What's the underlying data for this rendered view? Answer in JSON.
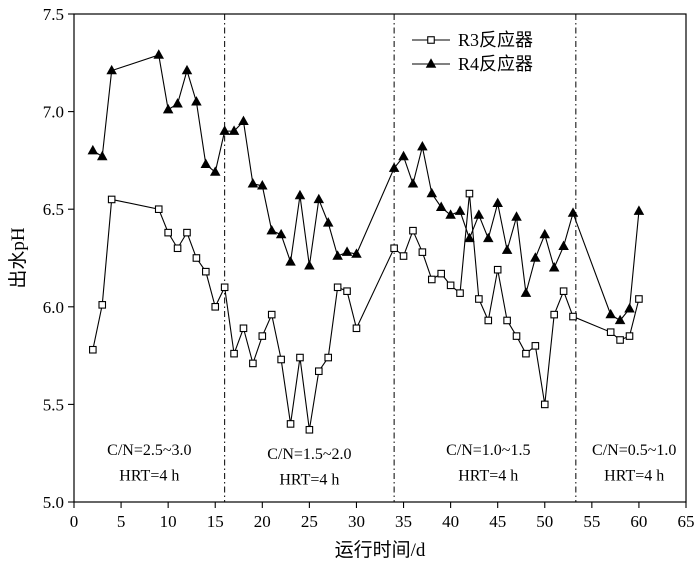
{
  "chart_data": {
    "type": "line",
    "title": "",
    "xlabel": "运行时间/d",
    "ylabel": "出水pH",
    "xlim": [
      0,
      65
    ],
    "ylim": [
      5.0,
      7.5
    ],
    "xticks": [
      0,
      5,
      10,
      15,
      20,
      25,
      30,
      35,
      40,
      45,
      50,
      55,
      60,
      65
    ],
    "yticks": [
      "5.0",
      "5.5",
      "6.0",
      "6.5",
      "7.0",
      "7.5"
    ],
    "grid": false,
    "legend_position": "top-right",
    "series": [
      {
        "name": "R3反应器",
        "marker": "open-square",
        "color": "#000000",
        "points": [
          [
            2,
            5.78
          ],
          [
            3,
            6.01
          ],
          [
            4,
            6.55
          ],
          [
            9,
            6.5
          ],
          [
            10,
            6.38
          ],
          [
            11,
            6.3
          ],
          [
            12,
            6.38
          ],
          [
            13,
            6.25
          ],
          [
            14,
            6.18
          ],
          [
            15,
            6.0
          ],
          [
            16,
            6.1
          ],
          [
            17,
            5.76
          ],
          [
            18,
            5.89
          ],
          [
            19,
            5.71
          ],
          [
            20,
            5.85
          ],
          [
            21,
            5.96
          ],
          [
            22,
            5.73
          ],
          [
            23,
            5.4
          ],
          [
            24,
            5.74
          ],
          [
            25,
            5.37
          ],
          [
            26,
            5.67
          ],
          [
            27,
            5.74
          ],
          [
            28,
            6.1
          ],
          [
            29,
            6.08
          ],
          [
            30,
            5.89
          ],
          [
            34,
            6.3
          ],
          [
            35,
            6.26
          ],
          [
            36,
            6.39
          ],
          [
            37,
            6.28
          ],
          [
            38,
            6.14
          ],
          [
            39,
            6.17
          ],
          [
            40,
            6.11
          ],
          [
            41,
            6.07
          ],
          [
            42,
            6.58
          ],
          [
            43,
            6.04
          ],
          [
            44,
            5.93
          ],
          [
            45,
            6.19
          ],
          [
            46,
            5.93
          ],
          [
            47,
            5.85
          ],
          [
            48,
            5.76
          ],
          [
            49,
            5.8
          ],
          [
            50,
            5.5
          ],
          [
            51,
            5.96
          ],
          [
            52,
            6.08
          ],
          [
            53,
            5.95
          ],
          [
            57,
            5.87
          ],
          [
            58,
            5.83
          ],
          [
            59,
            5.85
          ],
          [
            60,
            6.04
          ]
        ]
      },
      {
        "name": "R4反应器",
        "marker": "filled-triangle",
        "color": "#000000",
        "points": [
          [
            2,
            6.8
          ],
          [
            3,
            6.77
          ],
          [
            4,
            7.21
          ],
          [
            9,
            7.29
          ],
          [
            10,
            7.01
          ],
          [
            11,
            7.04
          ],
          [
            12,
            7.21
          ],
          [
            13,
            7.05
          ],
          [
            14,
            6.73
          ],
          [
            15,
            6.69
          ],
          [
            16,
            6.9
          ],
          [
            17,
            6.9
          ],
          [
            18,
            6.95
          ],
          [
            19,
            6.63
          ],
          [
            20,
            6.62
          ],
          [
            21,
            6.39
          ],
          [
            22,
            6.37
          ],
          [
            23,
            6.23
          ],
          [
            24,
            6.57
          ],
          [
            25,
            6.21
          ],
          [
            26,
            6.55
          ],
          [
            27,
            6.43
          ],
          [
            28,
            6.26
          ],
          [
            29,
            6.28
          ],
          [
            30,
            6.27
          ],
          [
            34,
            6.71
          ],
          [
            35,
            6.77
          ],
          [
            36,
            6.63
          ],
          [
            37,
            6.82
          ],
          [
            38,
            6.58
          ],
          [
            39,
            6.51
          ],
          [
            40,
            6.47
          ],
          [
            41,
            6.49
          ],
          [
            42,
            6.35
          ],
          [
            43,
            6.47
          ],
          [
            44,
            6.35
          ],
          [
            45,
            6.53
          ],
          [
            46,
            6.29
          ],
          [
            47,
            6.46
          ],
          [
            48,
            6.07
          ],
          [
            49,
            6.25
          ],
          [
            50,
            6.37
          ],
          [
            51,
            6.2
          ],
          [
            52,
            6.31
          ],
          [
            53,
            6.48
          ],
          [
            57,
            5.96
          ],
          [
            58,
            5.93
          ],
          [
            59,
            5.99
          ],
          [
            60,
            6.49
          ]
        ]
      }
    ],
    "divider_lines_x": [
      16,
      34,
      53.3
    ],
    "annotations": [
      {
        "line1": "C/N=2.5~3.0",
        "line2": "HRT=4 h",
        "x": 8,
        "y1": 5.24,
        "y2": 5.11
      },
      {
        "line1": "C/N=1.5~2.0",
        "line2": "HRT=4 h",
        "x": 25,
        "y1": 5.22,
        "y2": 5.09
      },
      {
        "line1": "C/N=1.0~1.5",
        "line2": "HRT=4 h",
        "x": 44,
        "y1": 5.24,
        "y2": 5.11
      },
      {
        "line1": "C/N=0.5~1.0",
        "line2": "HRT=4 h",
        "x": 59.5,
        "y1": 5.24,
        "y2": 5.11
      }
    ]
  }
}
